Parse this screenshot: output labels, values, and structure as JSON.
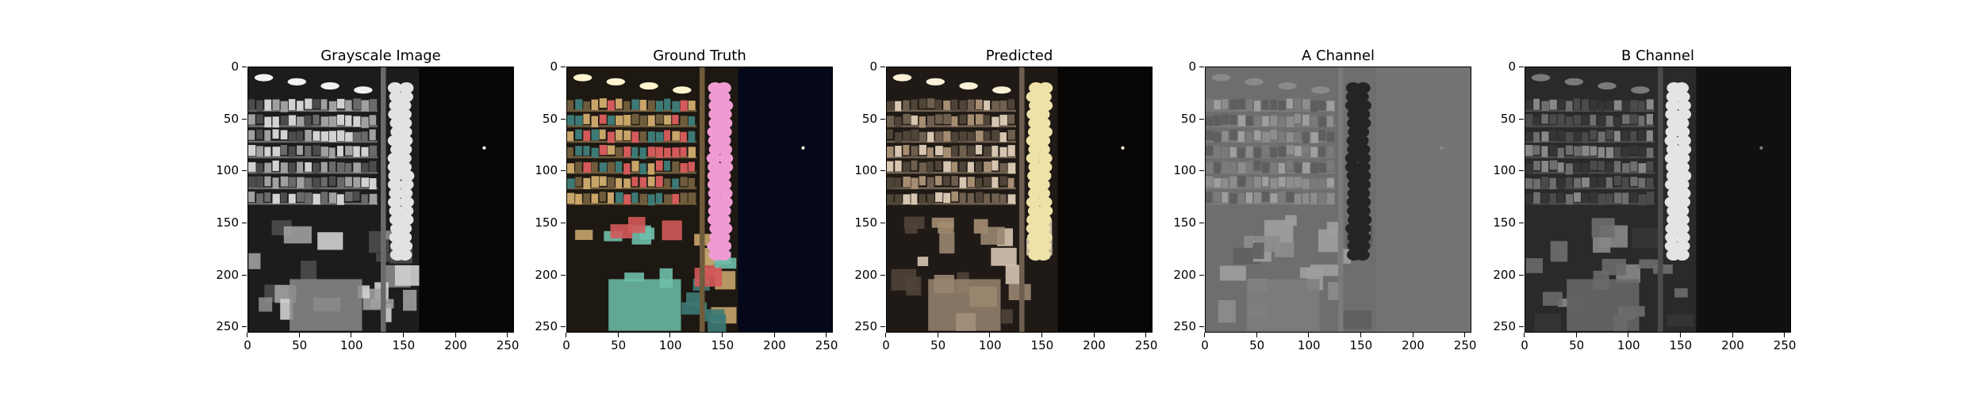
{
  "figure": {
    "panels": [
      {
        "title": "Grayscale Image",
        "style": "gray"
      },
      {
        "title": "Ground Truth",
        "style": "color"
      },
      {
        "title": "Predicted",
        "style": "sepia"
      },
      {
        "title": "A Channel",
        "style": "achan"
      },
      {
        "title": "B Channel",
        "style": "bchan"
      }
    ],
    "yticks": [
      "0",
      "50",
      "100",
      "150",
      "200",
      "250"
    ],
    "xticks": [
      "0",
      "50",
      "100",
      "150",
      "200",
      "250"
    ],
    "axis_range": [
      0,
      256
    ]
  },
  "colors": {
    "axis": "#000000",
    "background": "#ffffff"
  }
}
